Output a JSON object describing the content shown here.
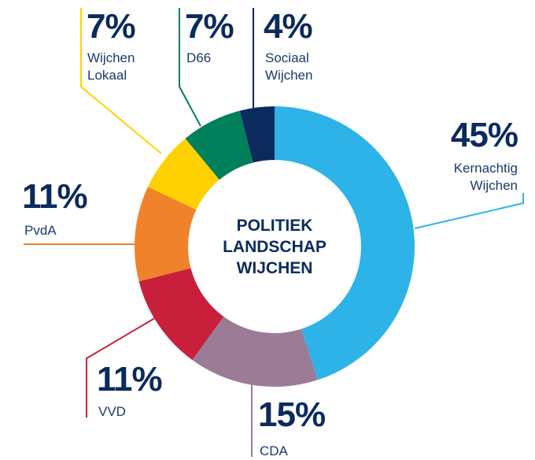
{
  "chart_data": {
    "type": "donut",
    "title": "POLITIEK LANDSCHAP WIJCHEN",
    "categories": [
      "Kernachtig Wijchen",
      "CDA",
      "VVD",
      "PvdA",
      "Wijchen Lokaal",
      "D66",
      "Sociaal Wijchen"
    ],
    "values": [
      45,
      15,
      11,
      11,
      7,
      7,
      4
    ],
    "value_labels": [
      "45%",
      "15%",
      "11%",
      "11%",
      "7%",
      "7%",
      "4%"
    ],
    "colors": [
      "#2db3e8",
      "#9b7b96",
      "#c8203a",
      "#f0822b",
      "#ffd100",
      "#00805a",
      "#0b2a5e"
    ]
  }
}
